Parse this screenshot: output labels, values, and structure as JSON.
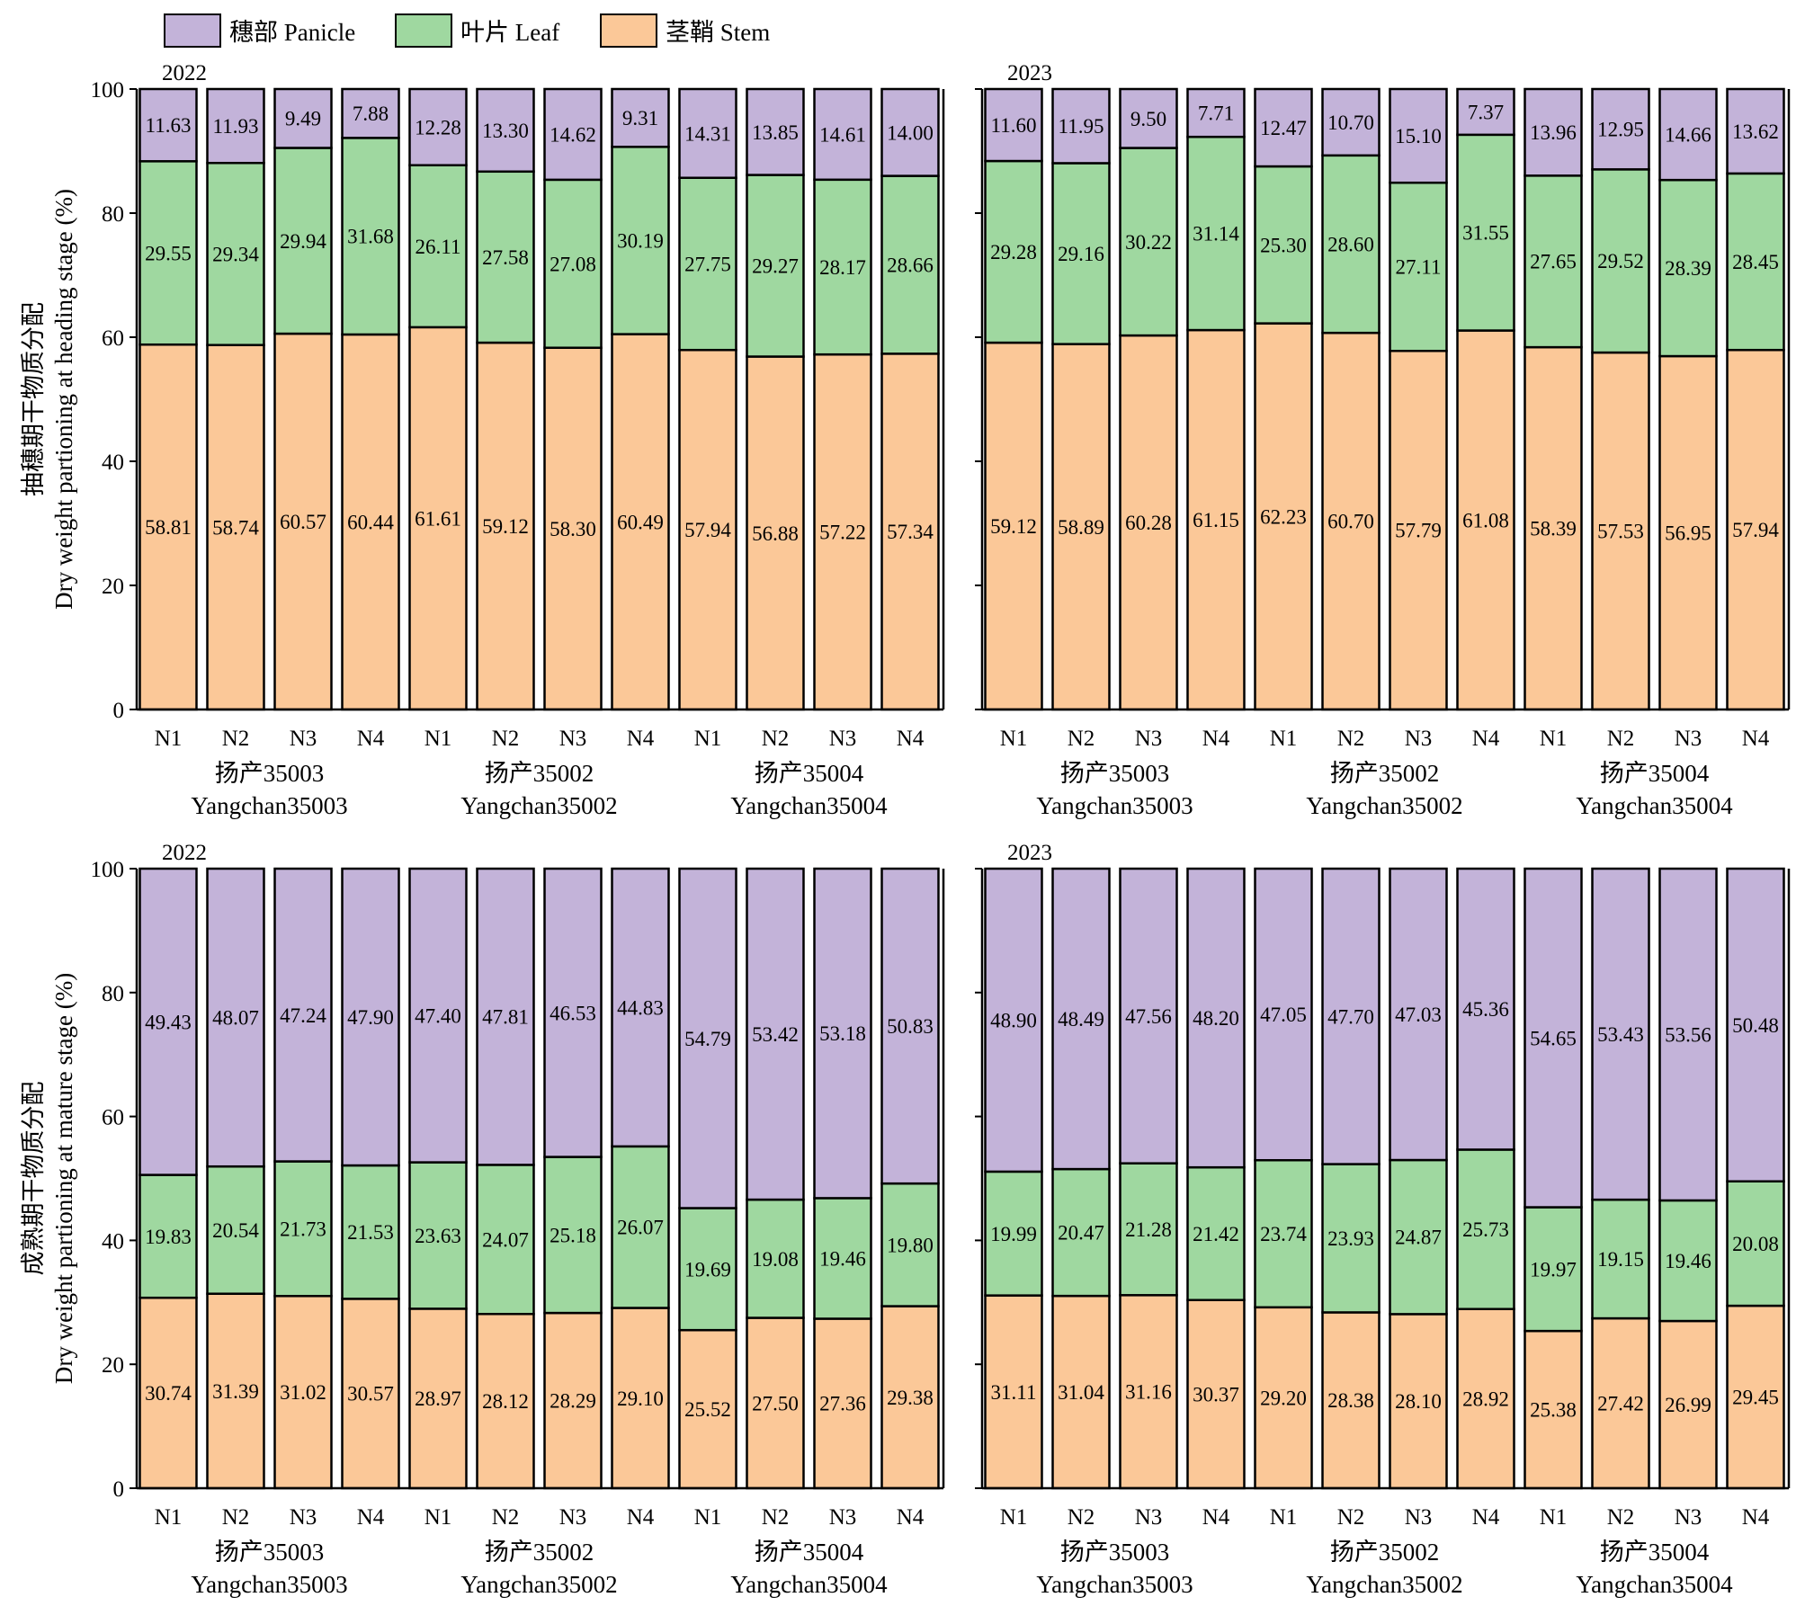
{
  "legend": [
    {
      "key": "panicle",
      "label": "穗部 Panicle",
      "color": "#c3b3d9"
    },
    {
      "key": "leaf",
      "label": "叶片 Leaf",
      "color": "#9fd8a0"
    },
    {
      "key": "stem",
      "label": "茎鞘 Stem",
      "color": "#fbc898"
    }
  ],
  "stroke_color": "#000000",
  "y_axis_labels": [
    {
      "line1": "抽穗期干物质分配",
      "line2": "Dry weight partioning at heading stage (%)"
    },
    {
      "line1": "成熟期干物质分配",
      "line2": "Dry weight partioning at mature stage (%)"
    }
  ],
  "chart_data": [
    {
      "type": "bar",
      "stacked": true,
      "title": "2022",
      "stage": "heading",
      "ylim": [
        0,
        100
      ],
      "yticks": [
        0,
        20,
        40,
        60,
        80,
        100
      ],
      "categories": [
        "N1",
        "N2",
        "N3",
        "N4",
        "N1",
        "N2",
        "N3",
        "N4",
        "N1",
        "N2",
        "N3",
        "N4"
      ],
      "groups": [
        {
          "cn": "扬产35003",
          "en": "Yangchan35003"
        },
        {
          "cn": "扬产35002",
          "en": "Yangchan35002"
        },
        {
          "cn": "扬产35004",
          "en": "Yangchan35004"
        }
      ],
      "series": [
        {
          "key": "stem",
          "values": [
            "58.81",
            "58.74",
            "60.57",
            "60.44",
            "61.61",
            "59.12",
            "58.30",
            "60.49",
            "57.94",
            "56.88",
            "57.22",
            "57.34"
          ]
        },
        {
          "key": "leaf",
          "values": [
            "29.55",
            "29.34",
            "29.94",
            "31.68",
            "26.11",
            "27.58",
            "27.08",
            "30.19",
            "27.75",
            "29.27",
            "28.17",
            "28.66"
          ]
        },
        {
          "key": "panicle",
          "values": [
            "11.63",
            "11.93",
            "9.49",
            "7.88",
            "12.28",
            "13.30",
            "14.62",
            "9.31",
            "14.31",
            "13.85",
            "14.61",
            "14.00"
          ]
        }
      ]
    },
    {
      "type": "bar",
      "stacked": true,
      "title": "2023",
      "stage": "heading",
      "ylim": [
        0,
        100
      ],
      "yticks": [
        0,
        20,
        40,
        60,
        80,
        100
      ],
      "categories": [
        "N1",
        "N2",
        "N3",
        "N4",
        "N1",
        "N2",
        "N3",
        "N4",
        "N1",
        "N2",
        "N3",
        "N4"
      ],
      "groups": [
        {
          "cn": "扬产35003",
          "en": "Yangchan35003"
        },
        {
          "cn": "扬产35002",
          "en": "Yangchan35002"
        },
        {
          "cn": "扬产35004",
          "en": "Yangchan35004"
        }
      ],
      "series": [
        {
          "key": "stem",
          "values": [
            "59.12",
            "58.89",
            "60.28",
            "61.15",
            "62.23",
            "60.70",
            "57.79",
            "61.08",
            "58.39",
            "57.53",
            "56.95",
            "57.94"
          ]
        },
        {
          "key": "leaf",
          "values": [
            "29.28",
            "29.16",
            "30.22",
            "31.14",
            "25.30",
            "28.60",
            "27.11",
            "31.55",
            "27.65",
            "29.52",
            "28.39",
            "28.45"
          ]
        },
        {
          "key": "panicle",
          "values": [
            "11.60",
            "11.95",
            "9.50",
            "7.71",
            "12.47",
            "10.70",
            "15.10",
            "7.37",
            "13.96",
            "12.95",
            "14.66",
            "13.62"
          ]
        }
      ]
    },
    {
      "type": "bar",
      "stacked": true,
      "title": "2022",
      "stage": "mature",
      "ylim": [
        0,
        100
      ],
      "yticks": [
        0,
        20,
        40,
        60,
        80,
        100
      ],
      "categories": [
        "N1",
        "N2",
        "N3",
        "N4",
        "N1",
        "N2",
        "N3",
        "N4",
        "N1",
        "N2",
        "N3",
        "N4"
      ],
      "groups": [
        {
          "cn": "扬产35003",
          "en": "Yangchan35003"
        },
        {
          "cn": "扬产35002",
          "en": "Yangchan35002"
        },
        {
          "cn": "扬产35004",
          "en": "Yangchan35004"
        }
      ],
      "series": [
        {
          "key": "stem",
          "values": [
            "30.74",
            "31.39",
            "31.02",
            "30.57",
            "28.97",
            "28.12",
            "28.29",
            "29.10",
            "25.52",
            "27.50",
            "27.36",
            "29.38"
          ]
        },
        {
          "key": "leaf",
          "values": [
            "19.83",
            "20.54",
            "21.73",
            "21.53",
            "23.63",
            "24.07",
            "25.18",
            "26.07",
            "19.69",
            "19.08",
            "19.46",
            "19.80"
          ]
        },
        {
          "key": "panicle",
          "values": [
            "49.43",
            "48.07",
            "47.24",
            "47.90",
            "47.40",
            "47.81",
            "46.53",
            "44.83",
            "54.79",
            "53.42",
            "53.18",
            "50.83"
          ]
        }
      ]
    },
    {
      "type": "bar",
      "stacked": true,
      "title": "2023",
      "stage": "mature",
      "ylim": [
        0,
        100
      ],
      "yticks": [
        0,
        20,
        40,
        60,
        80,
        100
      ],
      "categories": [
        "N1",
        "N2",
        "N3",
        "N4",
        "N1",
        "N2",
        "N3",
        "N4",
        "N1",
        "N2",
        "N3",
        "N4"
      ],
      "groups": [
        {
          "cn": "扬产35003",
          "en": "Yangchan35003"
        },
        {
          "cn": "扬产35002",
          "en": "Yangchan35002"
        },
        {
          "cn": "扬产35004",
          "en": "Yangchan35004"
        }
      ],
      "series": [
        {
          "key": "stem",
          "values": [
            "31.11",
            "31.04",
            "31.16",
            "30.37",
            "29.20",
            "28.38",
            "28.10",
            "28.92",
            "25.38",
            "27.42",
            "26.99",
            "29.45"
          ]
        },
        {
          "key": "leaf",
          "values": [
            "19.99",
            "20.47",
            "21.28",
            "21.42",
            "23.74",
            "23.93",
            "24.87",
            "25.73",
            "19.97",
            "19.15",
            "19.46",
            "20.08"
          ]
        },
        {
          "key": "panicle",
          "values": [
            "48.90",
            "48.49",
            "47.56",
            "48.20",
            "47.05",
            "47.70",
            "47.03",
            "45.36",
            "54.65",
            "53.43",
            "53.56",
            "50.48"
          ]
        }
      ]
    }
  ]
}
